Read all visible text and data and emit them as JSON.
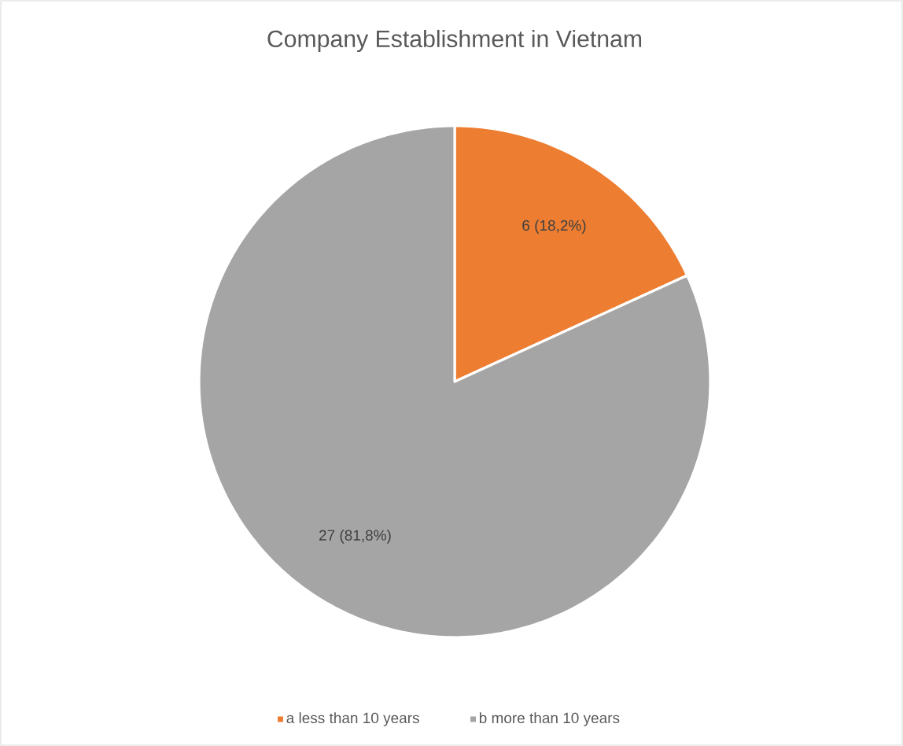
{
  "chart_data": {
    "type": "pie",
    "title": "Company Establishment in Vietnam",
    "categories": [
      "a less than 10 years",
      "b more than 10 years"
    ],
    "values": [
      6,
      27
    ],
    "colors": [
      "#ed7d31",
      "#a5a5a5"
    ],
    "value_labels": [
      "6 (18,2%)",
      "27 (81,8%)"
    ],
    "legend": "bottom"
  }
}
